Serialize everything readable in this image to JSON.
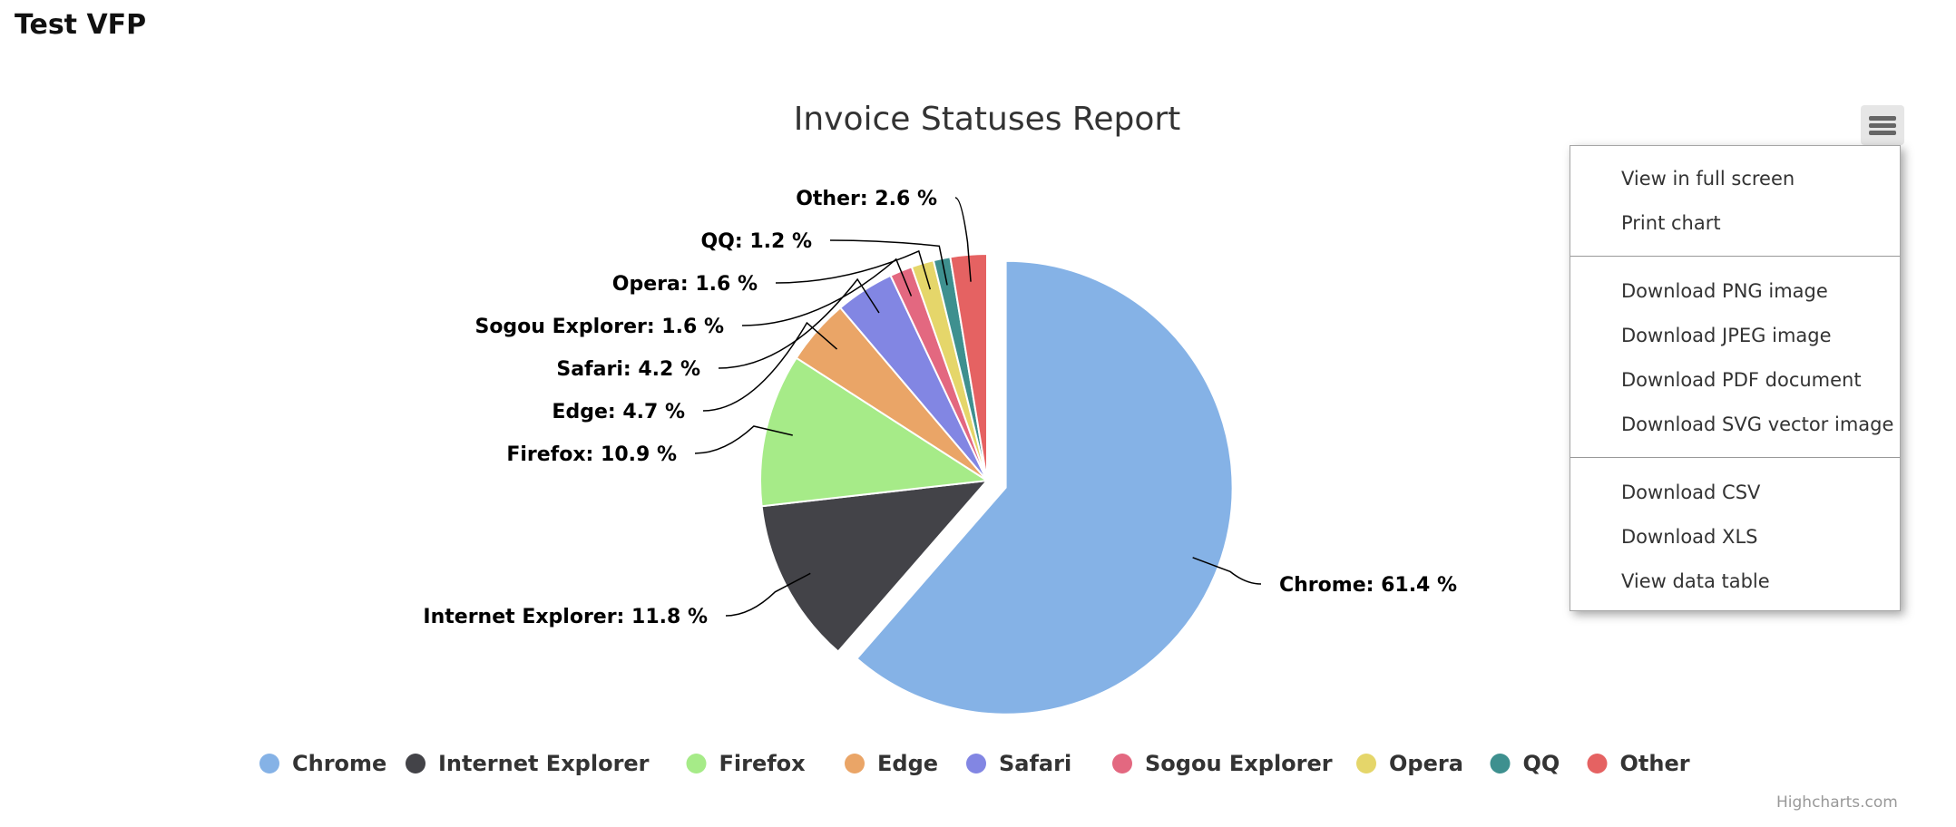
{
  "page": {
    "title": "Test VFP"
  },
  "chart_data": {
    "type": "pie",
    "title": "Invoice Statuses Report",
    "categories": [
      "Chrome",
      "Internet Explorer",
      "Firefox",
      "Edge",
      "Safari",
      "Sogou Explorer",
      "Opera",
      "QQ",
      "Other"
    ],
    "values": [
      61.4,
      11.8,
      10.9,
      4.7,
      4.2,
      1.6,
      1.6,
      1.2,
      2.6
    ],
    "data_labels": [
      "Chrome: 61.4 %",
      "Internet Explorer: 11.8 %",
      "Firefox: 10.9 %",
      "Edge: 4.7 %",
      "Safari: 4.2 %",
      "Sogou Explorer: 1.6 %",
      "Opera: 1.6 %",
      "QQ: 1.2 %",
      "Other: 2.6 %"
    ],
    "colors": [
      "#85b2e6",
      "#434348",
      "#a6eb88",
      "#eaa567",
      "#8286e3",
      "#e36880",
      "#e5d66a",
      "#3e908f",
      "#e56262"
    ],
    "sliced": "Chrome",
    "legend_position": "bottom"
  },
  "export_menu": {
    "items": [
      "View in full screen",
      "Print chart",
      "Download PNG image",
      "Download JPEG image",
      "Download PDF document",
      "Download SVG vector image",
      "Download CSV",
      "Download XLS",
      "View data table"
    ]
  },
  "credits": "Highcharts.com"
}
